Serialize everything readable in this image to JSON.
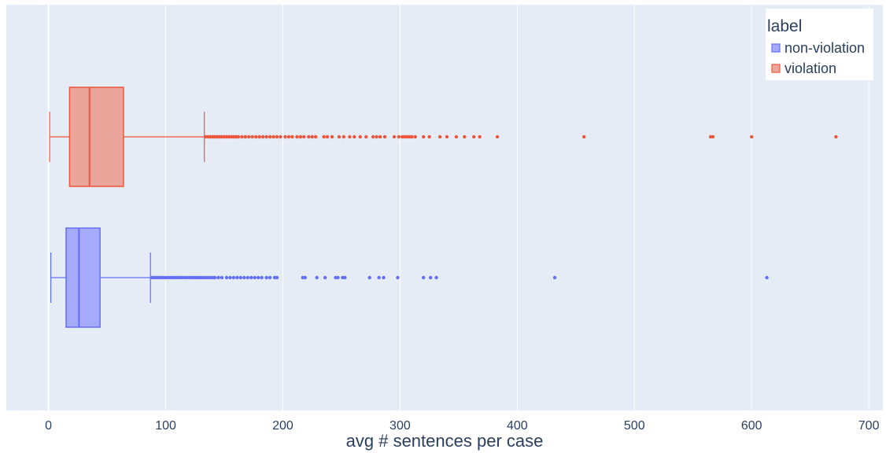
{
  "chart_data": {
    "type": "box",
    "orientation": "horizontal",
    "xlabel": "avg # sentences per case",
    "xlim": [
      -36,
      712
    ],
    "xticks": [
      0,
      100,
      200,
      300,
      400,
      500,
      600,
      700
    ],
    "grid": true,
    "background": "#e5ecf6",
    "legend": {
      "title": "label",
      "placement": "top-right"
    },
    "series": [
      {
        "name": "non-violation",
        "color": "#636efa",
        "fill": "#a5abfa",
        "min": 2,
        "q1": 15,
        "median": 26,
        "q3": 44,
        "max": 87,
        "outliers": [
          88,
          90,
          92,
          94,
          96,
          98,
          100,
          102,
          104,
          106,
          108,
          110,
          112,
          114,
          116,
          118,
          120,
          122,
          124,
          126,
          128,
          130,
          132,
          134,
          136,
          138,
          140,
          142,
          145,
          148,
          152,
          155,
          158,
          161,
          164,
          167,
          170,
          173,
          176,
          179,
          182,
          186,
          189,
          193,
          195,
          217,
          219,
          229,
          236,
          245,
          247,
          251,
          253,
          274,
          282,
          286,
          298,
          320,
          326,
          331,
          432,
          613
        ]
      },
      {
        "name": "violation",
        "color": "#ef553b",
        "fill": "#eba69c",
        "min": 1,
        "q1": 18,
        "median": 35,
        "q3": 64,
        "max": 133,
        "outliers": [
          134,
          136,
          138,
          140,
          142,
          144,
          146,
          148,
          150,
          152,
          154,
          156,
          158,
          160,
          162,
          165,
          168,
          171,
          174,
          177,
          180,
          183,
          186,
          189,
          192,
          195,
          198,
          202,
          205,
          208,
          212,
          215,
          218,
          222,
          225,
          228,
          235,
          238,
          242,
          248,
          252,
          257,
          261,
          266,
          271,
          277,
          280,
          283,
          287,
          295,
          299,
          302,
          304,
          306,
          308,
          310,
          313,
          320,
          325,
          334,
          340,
          348,
          355,
          363,
          368,
          383,
          457,
          565,
          567,
          600,
          672
        ]
      }
    ]
  }
}
